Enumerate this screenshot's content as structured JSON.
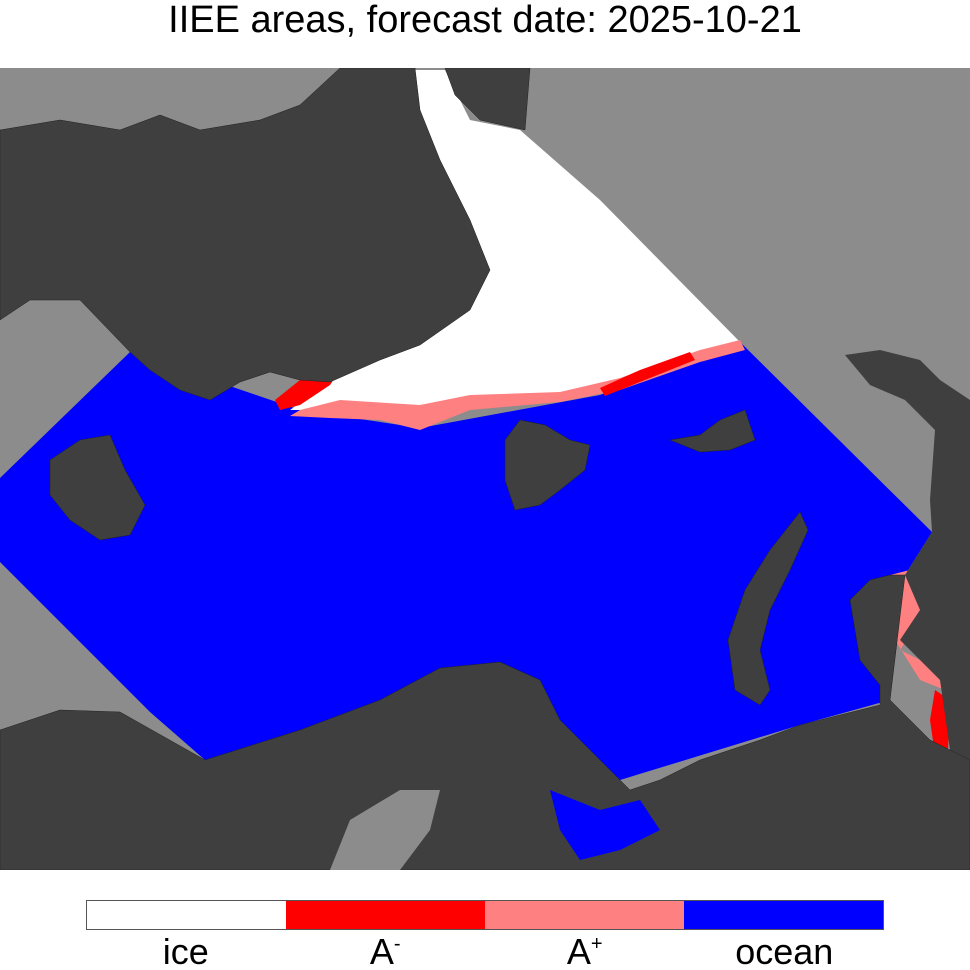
{
  "title": "IIEE areas, forecast date: 2025-10-21",
  "legend": [
    {
      "label": {
        "base": "ice"
      },
      "color": "#ffffff"
    },
    {
      "label": {
        "base": "A",
        "sup": "-"
      },
      "color": "#ff0000"
    },
    {
      "label": {
        "base": "A",
        "sup": "+"
      },
      "color": "#ff8080"
    },
    {
      "label": {
        "base": "ocean"
      },
      "color": "#0000ff"
    }
  ]
}
